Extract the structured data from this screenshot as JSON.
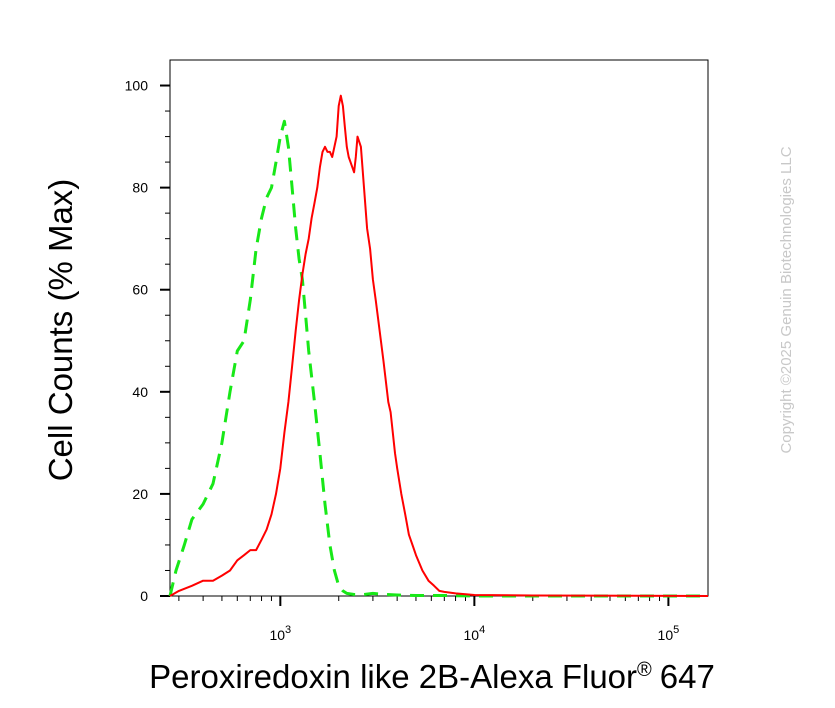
{
  "chart_data": {
    "type": "line",
    "title": "",
    "xlabel": "Peroxiredoxin like 2B-Alexa Fluor",
    "xlabel_superscript": "®",
    "xlabel_suffix": "647",
    "ylabel": "Cell Counts (% Max)",
    "x_scale": "log",
    "xlim": [
      270,
      160000
    ],
    "ylim": [
      0,
      105
    ],
    "grid": false,
    "legend": "none",
    "x_major_ticks": [
      {
        "value": 1000,
        "base": "10",
        "exp": "3"
      },
      {
        "value": 10000,
        "base": "10",
        "exp": "4"
      },
      {
        "value": 100000,
        "base": "10",
        "exp": "5"
      }
    ],
    "y_major_ticks": [
      {
        "value": 0,
        "label": "0"
      },
      {
        "value": 20,
        "label": "20"
      },
      {
        "value": 40,
        "label": "40"
      },
      {
        "value": 60,
        "label": "60"
      },
      {
        "value": 80,
        "label": "80"
      },
      {
        "value": 100,
        "label": "100"
      }
    ],
    "series": [
      {
        "color": "#18e818",
        "line_style": "dashed",
        "x": [
          270,
          290,
          320,
          350,
          400,
          450,
          500,
          550,
          600,
          650,
          700,
          750,
          800,
          850,
          900,
          950,
          1000,
          1050,
          1100,
          1150,
          1200,
          1250,
          1300,
          1350,
          1400,
          1500,
          1600,
          1700,
          1800,
          1900,
          2000,
          2100,
          2200,
          2400,
          2700,
          3000,
          3500,
          4000,
          5000,
          7000,
          10000,
          160000
        ],
        "y": [
          0,
          5,
          10,
          15,
          18,
          22,
          30,
          40,
          48,
          50,
          58,
          68,
          74,
          78,
          80,
          85,
          90,
          93,
          88,
          80,
          72,
          66,
          62,
          55,
          48,
          38,
          28,
          18,
          10,
          5,
          2,
          1,
          0.5,
          0.3,
          0.3,
          0.5,
          0.3,
          0.2,
          0.1,
          0.1,
          0,
          0
        ]
      },
      {
        "color": "#ff0000",
        "line_style": "solid",
        "x": [
          270,
          300,
          350,
          400,
          450,
          500,
          550,
          600,
          650,
          700,
          750,
          800,
          850,
          900,
          950,
          1000,
          1050,
          1100,
          1150,
          1200,
          1250,
          1300,
          1350,
          1400,
          1450,
          1500,
          1550,
          1600,
          1650,
          1700,
          1750,
          1800,
          1850,
          1900,
          1950,
          2000,
          2050,
          2100,
          2150,
          2200,
          2250,
          2300,
          2350,
          2400,
          2450,
          2500,
          2600,
          2700,
          2800,
          2900,
          3000,
          3100,
          3200,
          3300,
          3400,
          3500,
          3600,
          3700,
          3800,
          3900,
          4000,
          4200,
          4400,
          4600,
          4800,
          5000,
          5400,
          5800,
          6200,
          6600,
          7000,
          8000,
          10000,
          20000,
          160000
        ],
        "y": [
          0,
          1,
          2,
          3,
          3,
          4,
          5,
          7,
          8,
          9,
          9,
          11,
          13,
          16,
          20,
          25,
          32,
          38,
          45,
          52,
          58,
          63,
          67,
          70,
          74,
          77,
          80,
          84,
          87,
          88,
          87,
          87,
          86,
          88,
          90,
          96,
          98,
          96,
          92,
          88,
          86,
          85,
          84,
          83,
          86,
          90,
          88,
          80,
          72,
          68,
          62,
          58,
          54,
          50,
          46,
          42,
          38,
          36,
          32,
          28,
          25,
          20,
          16,
          12,
          10,
          8,
          5,
          3,
          2,
          1,
          0.8,
          0.5,
          0.2,
          0.1,
          0
        ]
      }
    ]
  },
  "watermark": "Copyright ©2025 Genuin Biotechnologies LLC"
}
